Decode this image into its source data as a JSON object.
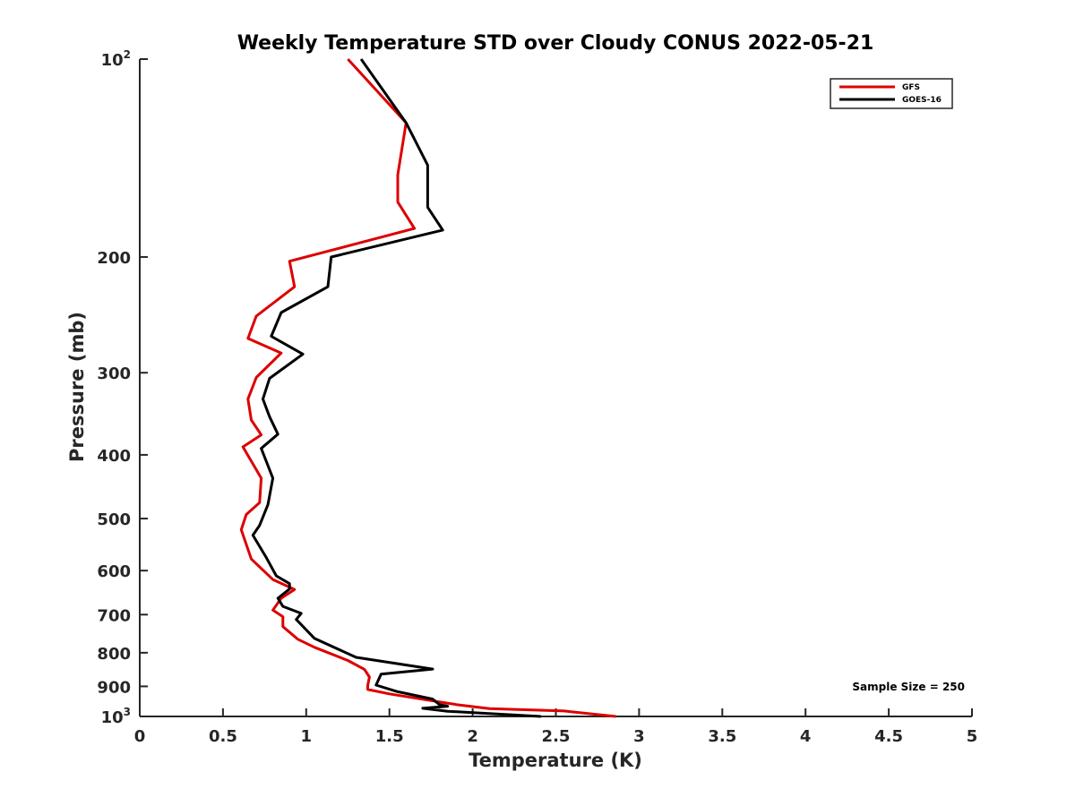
{
  "chart_data": {
    "type": "line",
    "title": "Weekly Temperature STD over Cloudy CONUS 2022-05-21",
    "xlabel": "Temperature (K)",
    "ylabel": "Pressure (mb)",
    "xlim": [
      0,
      5
    ],
    "ylim": [
      100,
      1000
    ],
    "y_scale": "log",
    "y_reversed": true,
    "grid": false,
    "legend_position": "top-right",
    "x_ticks": [
      "0",
      "0.5",
      "1",
      "1.5",
      "2",
      "2.5",
      "3",
      "3.5",
      "4",
      "4.5",
      "5"
    ],
    "y_ticks": [
      {
        "value": 100,
        "base": "10",
        "exp": "2"
      },
      {
        "value": 200,
        "text": "200"
      },
      {
        "value": 300,
        "text": "300"
      },
      {
        "value": 400,
        "text": "400"
      },
      {
        "value": 500,
        "text": "500"
      },
      {
        "value": 600,
        "text": "600"
      },
      {
        "value": 700,
        "text": "700"
      },
      {
        "value": 800,
        "text": "800"
      },
      {
        "value": 900,
        "text": "900"
      },
      {
        "value": 1000,
        "base": "10",
        "exp": "3"
      }
    ],
    "annotation": "Sample Size = 250",
    "series": [
      {
        "name": "GFS",
        "color": "#dd0000",
        "points": [
          [
            1.25,
            100
          ],
          [
            1.6,
            125
          ],
          [
            1.55,
            150
          ],
          [
            1.55,
            165
          ],
          [
            1.65,
            181
          ],
          [
            0.9,
            203
          ],
          [
            0.93,
            222
          ],
          [
            0.7,
            246
          ],
          [
            0.65,
            266
          ],
          [
            0.85,
            280
          ],
          [
            0.7,
            305
          ],
          [
            0.65,
            329
          ],
          [
            0.67,
            354
          ],
          [
            0.73,
            373
          ],
          [
            0.62,
            389
          ],
          [
            0.73,
            434
          ],
          [
            0.72,
            473
          ],
          [
            0.64,
            493
          ],
          [
            0.61,
            520
          ],
          [
            0.67,
            576
          ],
          [
            0.8,
            619
          ],
          [
            0.93,
            641
          ],
          [
            0.85,
            661
          ],
          [
            0.8,
            689
          ],
          [
            0.86,
            705
          ],
          [
            0.86,
            730
          ],
          [
            0.95,
            763
          ],
          [
            1.05,
            785
          ],
          [
            1.25,
            822
          ],
          [
            1.35,
            848
          ],
          [
            1.38,
            871
          ],
          [
            1.37,
            897
          ],
          [
            1.37,
            910
          ],
          [
            1.5,
            924
          ],
          [
            1.65,
            937
          ],
          [
            1.75,
            946
          ],
          [
            1.9,
            959
          ],
          [
            2.1,
            973
          ],
          [
            2.55,
            981
          ],
          [
            2.86,
            1000
          ]
        ]
      },
      {
        "name": "GOES-16",
        "color": "#000000",
        "points": [
          [
            1.33,
            100
          ],
          [
            1.6,
            125
          ],
          [
            1.73,
            145
          ],
          [
            1.73,
            168
          ],
          [
            1.82,
            182
          ],
          [
            1.15,
            200
          ],
          [
            1.13,
            222
          ],
          [
            0.85,
            243
          ],
          [
            0.79,
            264
          ],
          [
            0.98,
            281
          ],
          [
            0.78,
            306
          ],
          [
            0.74,
            329
          ],
          [
            0.78,
            350
          ],
          [
            0.83,
            372
          ],
          [
            0.73,
            391
          ],
          [
            0.8,
            434
          ],
          [
            0.77,
            476
          ],
          [
            0.72,
            512
          ],
          [
            0.68,
            530
          ],
          [
            0.76,
            573
          ],
          [
            0.82,
            611
          ],
          [
            0.9,
            628
          ],
          [
            0.9,
            640
          ],
          [
            0.83,
            661
          ],
          [
            0.86,
            680
          ],
          [
            0.97,
            697
          ],
          [
            0.94,
            712
          ],
          [
            1.05,
            761
          ],
          [
            1.3,
            813
          ],
          [
            1.76,
            847
          ],
          [
            1.45,
            862
          ],
          [
            1.42,
            896
          ],
          [
            1.55,
            917
          ],
          [
            1.76,
            941
          ],
          [
            1.8,
            959
          ],
          [
            1.85,
            965
          ],
          [
            1.7,
            972
          ],
          [
            1.85,
            982
          ],
          [
            2.41,
            1000
          ]
        ]
      }
    ]
  }
}
